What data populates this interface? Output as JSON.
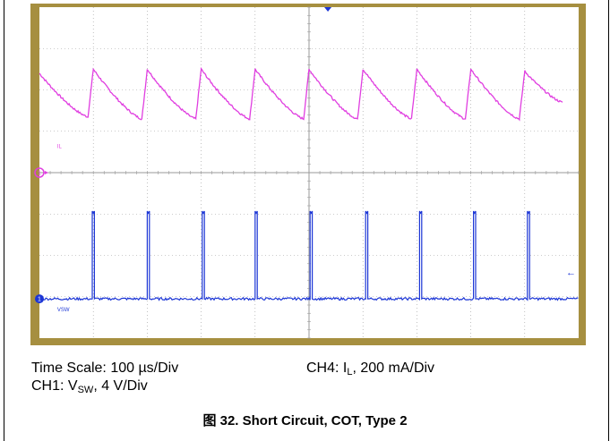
{
  "chart_data": {
    "type": "line",
    "title": "",
    "xlabel": "",
    "ylabel": "",
    "x_divisions": 10,
    "y_divisions": 8,
    "xlim": [
      0,
      10
    ],
    "ylim": [
      -4,
      4
    ],
    "grid": true,
    "background": "#ffffff",
    "frame_color": "#a68f40",
    "series": [
      {
        "name": "IL",
        "color": "#e03ee0",
        "x": [
          0.0,
          0.9,
          1.0,
          1.9,
          2.0,
          2.9,
          3.0,
          3.9,
          4.0,
          4.9,
          5.0,
          5.9,
          6.0,
          6.9,
          7.0,
          7.9,
          8.0,
          8.9,
          9.0,
          9.7
        ],
        "value": [
          2.4,
          1.35,
          2.5,
          1.3,
          2.5,
          1.3,
          2.5,
          1.3,
          2.5,
          1.3,
          2.5,
          1.3,
          2.5,
          1.3,
          2.5,
          1.3,
          2.5,
          1.3,
          2.45,
          1.7
        ],
        "label_position": [
          0.33,
          0.6
        ]
      },
      {
        "name": "VSW",
        "color": "#1c36d6",
        "baseline": -3.05,
        "pulse_top": -0.93,
        "pulse_width_div": 0.04,
        "pulse_x": [
          0.98,
          2.0,
          3.02,
          4.0,
          5.02,
          6.05,
          7.05,
          8.05,
          9.05
        ],
        "label_position": [
          0.33,
          -3.35
        ]
      }
    ],
    "marker_channel_IL": "1",
    "marker_channel_VSW": "1",
    "right_marker": "←"
  },
  "caption": {
    "time_scale": "Time Scale: 100 µs/Div",
    "ch1_prefix": "CH1: V",
    "ch1_sub": "SW",
    "ch1_suffix": ", 4 V/Div",
    "ch4_prefix": "CH4: I",
    "ch4_sub": "L",
    "ch4_suffix": ", 200 mA/Div"
  },
  "figure_title": "图 32. Short Circuit, COT, Type 2"
}
